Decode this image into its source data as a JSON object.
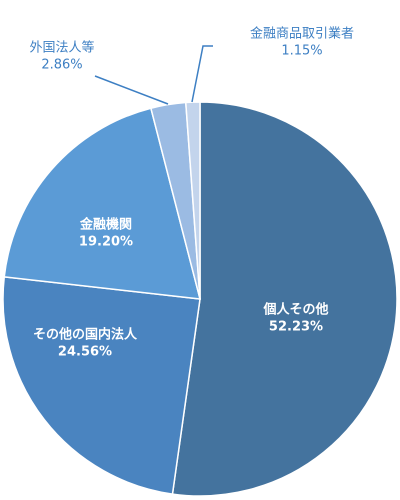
{
  "chart_data": {
    "type": "pie",
    "categories": [
      "個人その他",
      "その他の国内法人",
      "金融機関",
      "外国法人等",
      "金融商品取引業者"
    ],
    "values": [
      52.23,
      24.56,
      19.2,
      2.86,
      1.15
    ],
    "value_labels": [
      "52.23%",
      "24.56%",
      "19.20%",
      "2.86%",
      "1.15%"
    ],
    "colors": [
      "#44739e",
      "#4a84c0",
      "#5b9bd6",
      "#9bbbe3",
      "#c3d4ec"
    ]
  }
}
